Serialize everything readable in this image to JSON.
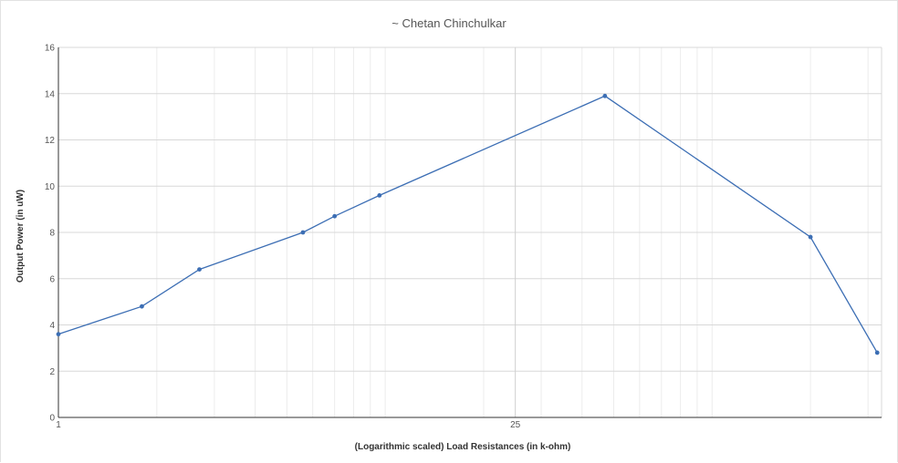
{
  "chart_data": {
    "type": "line",
    "title": "~ Chetan Chinchulkar",
    "xlabel": "(Logarithmic scaled) Load Resistances (in k-ohm)",
    "ylabel": "Output Power (in uW)",
    "x_scale": "log",
    "xlim": [
      1,
      330
    ],
    "ylim": [
      0,
      16
    ],
    "x_ticks": [
      1,
      25
    ],
    "x_tick_labels": [
      "1",
      "25"
    ],
    "y_ticks": [
      0,
      2,
      4,
      6,
      8,
      10,
      12,
      14,
      16
    ],
    "y_tick_labels": [
      "0",
      "2",
      "4",
      "6",
      "8",
      "10",
      "12",
      "14",
      "16"
    ],
    "grid": true,
    "legend": "none",
    "series": [
      {
        "color": "#3c6eb4",
        "x": [
          1,
          1.8,
          2.7,
          5.6,
          7,
          9.6,
          47,
          200,
          320
        ],
        "y": [
          3.6,
          4.8,
          6.4,
          8.0,
          8.7,
          9.6,
          13.9,
          7.8,
          2.8
        ]
      }
    ]
  }
}
